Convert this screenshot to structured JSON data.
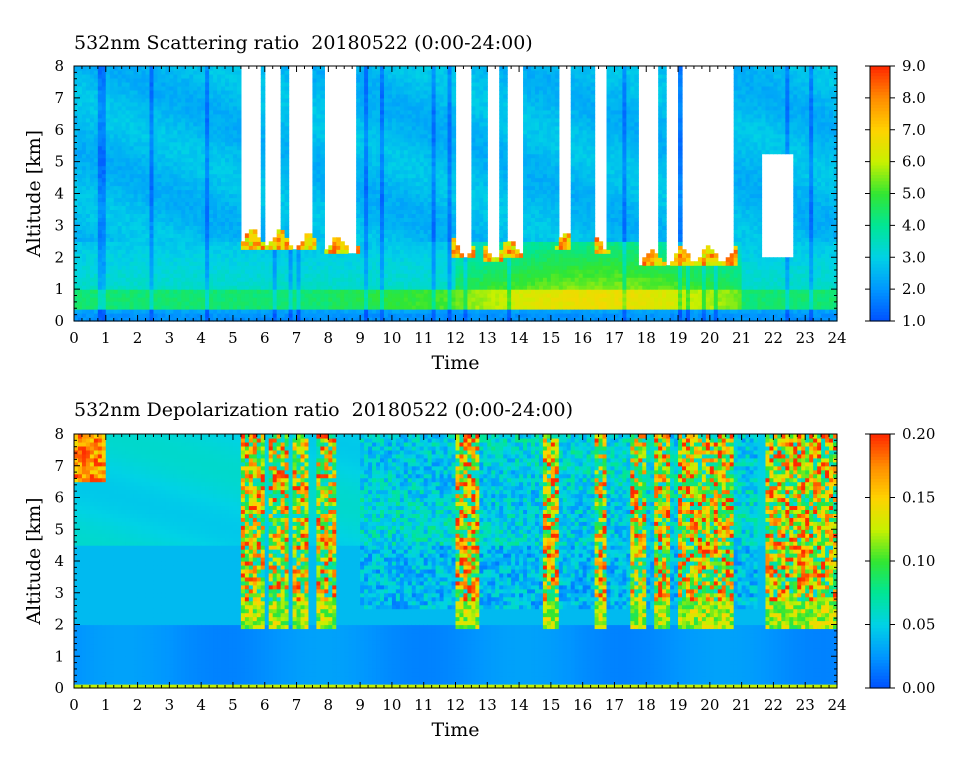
{
  "chart_data": [
    {
      "type": "heatmap",
      "title": "532nm Scattering ratio  20180522 (0:00-24:00)",
      "xlabel": "Time",
      "ylabel": "Altitude [km]",
      "xlim": [
        0,
        24
      ],
      "ylim": [
        0,
        8
      ],
      "x_ticks": [
        "0",
        "1",
        "2",
        "3",
        "4",
        "5",
        "6",
        "7",
        "8",
        "9",
        "10",
        "11",
        "12",
        "13",
        "14",
        "15",
        "16",
        "17",
        "18",
        "19",
        "20",
        "21",
        "22",
        "23",
        "24"
      ],
      "y_ticks": [
        "0",
        "1",
        "2",
        "3",
        "4",
        "5",
        "6",
        "7",
        "8"
      ],
      "colorbar": {
        "min": 1.0,
        "max": 9.0,
        "ticks": [
          "1.0",
          "2.0",
          "3.0",
          "4.0",
          "5.0",
          "6.0",
          "7.0",
          "8.0",
          "9.0"
        ],
        "colors": [
          "#0050ff",
          "#0096ff",
          "#00d2e6",
          "#00e696",
          "#32e632",
          "#c8f000",
          "#ffd200",
          "#ff8c00",
          "#ff2800"
        ]
      },
      "clouds_white_over_km": [
        [
          5.3,
          5.9,
          2.6
        ],
        [
          6.0,
          6.5,
          2.6
        ],
        [
          6.7,
          7.5,
          2.5
        ],
        [
          7.9,
          8.9,
          2.4
        ],
        [
          12.0,
          12.5,
          2.3
        ],
        [
          13.0,
          13.4,
          2.2
        ],
        [
          13.6,
          14.1,
          2.3
        ],
        [
          15.2,
          15.6,
          2.5
        ],
        [
          16.4,
          16.8,
          2.4
        ],
        [
          17.7,
          18.4,
          2.0
        ],
        [
          18.6,
          19.0,
          2.0
        ],
        [
          19.1,
          20.8,
          2.1
        ]
      ],
      "aerosol_layer_top_km": 1.0,
      "enhanced_layer_hours": [
        12.0,
        21.0
      ]
    },
    {
      "type": "heatmap",
      "title": "532nm Depolarization ratio  20180522 (0:00-24:00)",
      "xlabel": "Time",
      "ylabel": "Altitude [km]",
      "xlim": [
        0,
        24
      ],
      "ylim": [
        0,
        8
      ],
      "x_ticks": [
        "0",
        "1",
        "2",
        "3",
        "4",
        "5",
        "6",
        "7",
        "8",
        "9",
        "10",
        "11",
        "12",
        "13",
        "14",
        "15",
        "16",
        "17",
        "18",
        "19",
        "20",
        "21",
        "22",
        "23",
        "24"
      ],
      "y_ticks": [
        "0",
        "1",
        "2",
        "3",
        "4",
        "5",
        "6",
        "7",
        "8"
      ],
      "colorbar": {
        "min": 0.0,
        "max": 0.2,
        "ticks": [
          "0.00",
          "0.05",
          "0.10",
          "0.15",
          "0.20"
        ],
        "colors": [
          "#0050ff",
          "#0096ff",
          "#00d2e6",
          "#00e696",
          "#32e632",
          "#c8f000",
          "#ffd200",
          "#ff8c00",
          "#ff2800"
        ]
      },
      "noisy_bands_hours": [
        [
          5.2,
          6.0
        ],
        [
          6.1,
          6.8
        ],
        [
          6.9,
          7.4
        ],
        [
          7.6,
          8.3
        ],
        [
          12.0,
          12.8
        ],
        [
          14.8,
          15.2
        ],
        [
          16.4,
          16.8
        ],
        [
          17.5,
          18.0
        ],
        [
          18.3,
          18.8
        ],
        [
          19.0,
          20.8
        ],
        [
          21.8,
          24.0
        ]
      ]
    }
  ]
}
